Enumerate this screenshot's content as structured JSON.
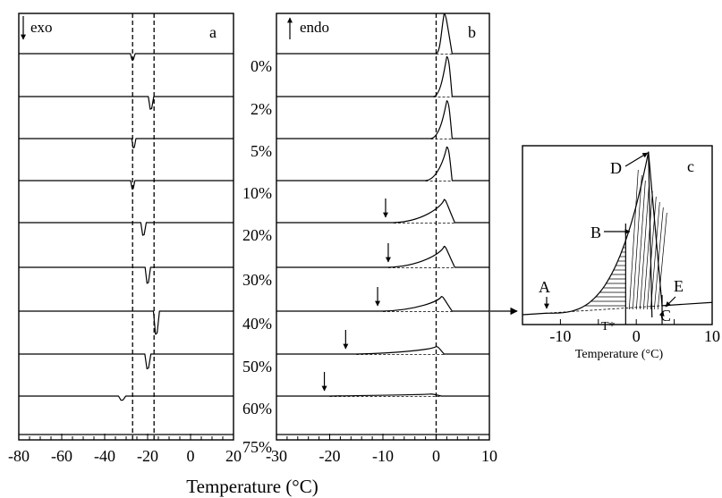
{
  "figure": {
    "shared_xlabel": "Temperature (°C)",
    "concentrations": [
      "0%",
      "2%",
      "5%",
      "10%",
      "20%",
      "30%",
      "40%",
      "50%",
      "60%",
      "75%"
    ]
  },
  "chart_data": [
    {
      "type": "line",
      "panel": "a",
      "panel_label": "a",
      "direction_label": "exo",
      "direction_arrow": "down",
      "xlim": [
        -80,
        20
      ],
      "tick_labels": [
        "-80",
        "-60",
        "-40",
        "-20",
        "0",
        "20"
      ],
      "dashed_verticals": [
        -27,
        -17
      ],
      "series": [
        {
          "name": "0%",
          "peak_x": -27,
          "peak_depth": 0.15,
          "peak_width": 0.8
        },
        {
          "name": "2%",
          "peak_x": -18.5,
          "peak_depth": 0.3,
          "peak_width": 0.9
        },
        {
          "name": "5%",
          "peak_x": -26.5,
          "peak_depth": 0.22,
          "peak_width": 0.7
        },
        {
          "name": "10%",
          "peak_x": -27,
          "peak_depth": 0.2,
          "peak_width": 0.7
        },
        {
          "name": "20%",
          "peak_x": -22,
          "peak_depth": 0.3,
          "peak_width": 0.9
        },
        {
          "name": "30%",
          "peak_x": -20,
          "peak_depth": 0.38,
          "peak_width": 0.9
        },
        {
          "name": "40%",
          "peak_x": -16,
          "peak_depth": 0.55,
          "peak_width": 1.0
        },
        {
          "name": "50%",
          "peak_x": -20,
          "peak_depth": 0.35,
          "peak_width": 1.0
        },
        {
          "name": "60%",
          "peak_x": -32,
          "peak_depth": 0.1,
          "peak_width": 1.2
        },
        {
          "name": "75%",
          "peak_x": null,
          "peak_depth": 0,
          "peak_width": 0
        }
      ]
    },
    {
      "type": "line",
      "panel": "b",
      "panel_label": "b",
      "direction_label": "endo",
      "direction_arrow": "up",
      "xlim": [
        -30,
        10
      ],
      "tick_labels": [
        "-30",
        "-20",
        "-10",
        "0",
        "10"
      ],
      "dashed_verticals": [
        0
      ],
      "series": [
        {
          "name": "0%",
          "onset": 0,
          "peak_x": 1.5,
          "end": 3.0,
          "height": 0.95
        },
        {
          "name": "2%",
          "onset": -0.5,
          "peak_x": 2.0,
          "end": 3.0,
          "height": 0.95
        },
        {
          "name": "5%",
          "onset": -1.0,
          "peak_x": 2.0,
          "end": 3.0,
          "height": 0.9
        },
        {
          "name": "10%",
          "onset": -2.0,
          "peak_x": 2.0,
          "end": 3.0,
          "height": 0.8
        },
        {
          "name": "20%",
          "onset": -8.0,
          "peak_x": 1.5,
          "end": 3.5,
          "height": 0.55,
          "arrow_x": -9.5
        },
        {
          "name": "30%",
          "onset": -9.0,
          "peak_x": 1.5,
          "end": 3.5,
          "height": 0.5,
          "arrow_x": -9
        },
        {
          "name": "40%",
          "onset": -10.0,
          "peak_x": 1.0,
          "end": 3.0,
          "height": 0.35,
          "arrow_x": -11
        },
        {
          "name": "50%",
          "onset": -15.0,
          "peak_x": 0,
          "end": 1.5,
          "height": 0.18,
          "arrow_x": -17
        },
        {
          "name": "60%",
          "onset": -20.0,
          "peak_x": -1.0,
          "end": 1.0,
          "height": 0.05,
          "arrow_x": -21
        },
        {
          "name": "75%",
          "onset": null,
          "peak_x": null,
          "end": null,
          "height": 0
        }
      ]
    },
    {
      "type": "line",
      "panel": "c",
      "panel_label": "c",
      "xlim": [
        -15,
        10
      ],
      "tick_labels": [
        "-10",
        "0",
        "10"
      ],
      "xlabel": "Temperature (°C)",
      "annotations": [
        "A",
        "B",
        "C",
        "D",
        "E",
        "T*"
      ],
      "source_trace": "40%"
    }
  ]
}
